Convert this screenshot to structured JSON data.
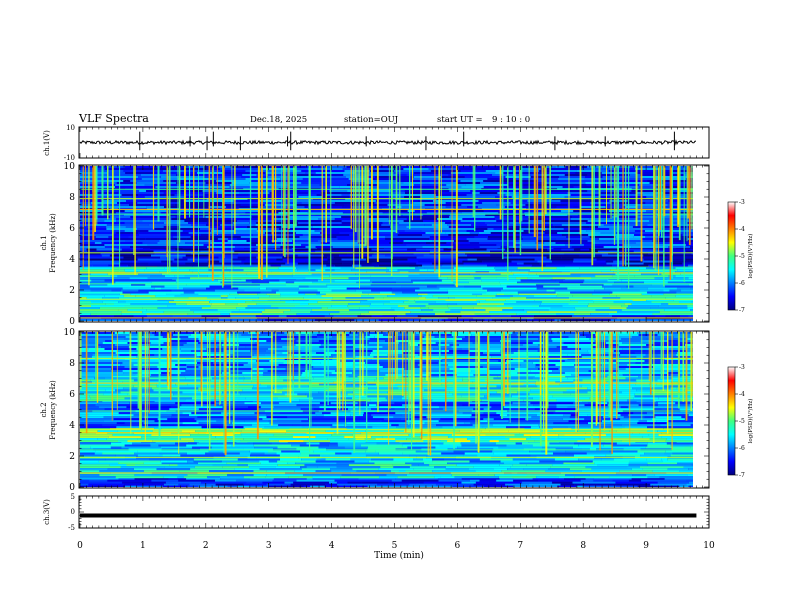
{
  "header": {
    "title": "VLF Spectra",
    "date": "Dec.18, 2025",
    "station": "station=OUJ",
    "start_ut_label": "start UT =",
    "start_ut_value": "9 : 10 : 0"
  },
  "chart_data": [
    {
      "type": "line",
      "name": "ch1-waveform",
      "ylabel": "ch.1(V)",
      "ylim": [
        -10,
        10
      ],
      "yticks": [
        "10",
        "-10"
      ],
      "xlim": [
        0,
        10
      ],
      "baseline": 0,
      "description_units": "V"
    },
    {
      "type": "heatmap",
      "name": "ch1-spectrogram",
      "ylabel_line1": "ch.1",
      "ylabel_line2": "Frequency (kHz)",
      "ylim": [
        0,
        10
      ],
      "yticks": [
        "0",
        "2",
        "4",
        "6",
        "8",
        "10"
      ],
      "xlim": [
        0,
        9.8
      ],
      "colorbar": {
        "label": "log(PSD)(V²/Hz)",
        "range": [
          -7,
          -3
        ],
        "ticks": [
          "-3",
          "-4",
          "-5",
          "-6",
          "-7"
        ]
      },
      "bands_khz": [
        {
          "from": 0,
          "to": 0.5,
          "level": -6.5
        },
        {
          "from": 0.5,
          "to": 1.8,
          "level": -5.3
        },
        {
          "from": 1.8,
          "to": 2.8,
          "level": -5.8
        },
        {
          "from": 2.8,
          "to": 3.6,
          "level": -5.4
        },
        {
          "from": 3.6,
          "to": 4.8,
          "level": -6.6
        },
        {
          "from": 4.8,
          "to": 10,
          "level": -6.3
        }
      ],
      "lines_khz": [
        0.2,
        1.4,
        2.4,
        3.1,
        4.4,
        6.9,
        7.2,
        7.9,
        8.5
      ]
    },
    {
      "type": "heatmap",
      "name": "ch2-spectrogram",
      "ylabel_line1": "ch.2",
      "ylabel_line2": "Frequency (kHz)",
      "ylim": [
        0,
        10
      ],
      "yticks": [
        "0",
        "2",
        "4",
        "6",
        "8",
        "10"
      ],
      "xlim": [
        0,
        9.8
      ],
      "colorbar": {
        "label": "log(PSD)(V²/Hz)",
        "range": [
          -7,
          -3
        ],
        "ticks": [
          "-3",
          "-4",
          "-5",
          "-6",
          "-7"
        ]
      },
      "bands_khz": [
        {
          "from": 0,
          "to": 0.6,
          "level": -6.3
        },
        {
          "from": 0.6,
          "to": 1.6,
          "level": -5.5
        },
        {
          "from": 1.6,
          "to": 3.0,
          "level": -5.7
        },
        {
          "from": 3.0,
          "to": 3.8,
          "level": -5.0
        },
        {
          "from": 3.8,
          "to": 5.6,
          "level": -6.0
        },
        {
          "from": 5.6,
          "to": 7.2,
          "level": -5.4
        },
        {
          "from": 7.2,
          "to": 10,
          "level": -5.9
        }
      ],
      "lines_khz": [
        0.9,
        1.9,
        2.4,
        3.5,
        3.7,
        4.9,
        6.7,
        8.3
      ]
    },
    {
      "type": "line",
      "name": "ch3-waveform",
      "ylabel": "ch.3(V)",
      "ylim": [
        -5,
        5
      ],
      "yticks": [
        "5",
        "0",
        "-5"
      ],
      "xlim": [
        0,
        10
      ],
      "baseline": -1.1,
      "description_units": "V"
    }
  ],
  "x_axis": {
    "label": "Time (min)",
    "ticks": [
      "0",
      "1",
      "2",
      "3",
      "4",
      "5",
      "6",
      "7",
      "8",
      "9",
      "10"
    ],
    "range": [
      0,
      10
    ]
  }
}
